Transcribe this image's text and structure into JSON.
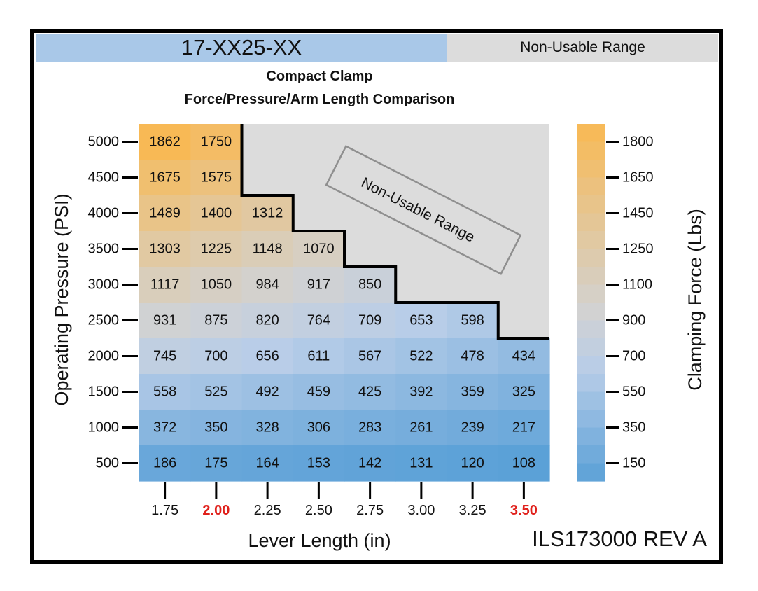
{
  "header": {
    "model": "17-XX25-XX",
    "legend_non_usable": "Non-Usable Range"
  },
  "drawing_number": "ILS173000 REV A",
  "colors": {
    "blue": "#5aa0d7",
    "light_blue": "#b8cde8",
    "gray": "#d2d2d2",
    "orange": "#f9b953",
    "non_usable": "#dcdcdc",
    "highlight_text": "#e0201b"
  },
  "chart_data": {
    "type": "heatmap",
    "title": "Compact Clamp",
    "subtitle": "Force/Pressure/Arm Length Comparison",
    "xlabel": "Lever Length (in)",
    "ylabel": "Operating Pressure (PSI)",
    "colorbar_label": "Clamping Force (Lbs)",
    "x": [
      "1.75",
      "2.00",
      "2.25",
      "2.50",
      "2.75",
      "3.00",
      "3.25",
      "3.50"
    ],
    "x_highlighted": [
      "2.00",
      "3.50"
    ],
    "y": [
      "5000",
      "4500",
      "4000",
      "3500",
      "3000",
      "2500",
      "2000",
      "1500",
      "1000",
      "500"
    ],
    "values": [
      [
        1862,
        1750,
        null,
        null,
        null,
        null,
        null,
        null
      ],
      [
        1675,
        1575,
        null,
        null,
        null,
        null,
        null,
        null
      ],
      [
        1489,
        1400,
        1312,
        null,
        null,
        null,
        null,
        null
      ],
      [
        1303,
        1225,
        1148,
        1070,
        null,
        null,
        null,
        null
      ],
      [
        1117,
        1050,
        984,
        917,
        850,
        null,
        null,
        null
      ],
      [
        931,
        875,
        820,
        764,
        709,
        653,
        598,
        null
      ],
      [
        745,
        700,
        656,
        611,
        567,
        522,
        478,
        434
      ],
      [
        558,
        525,
        492,
        459,
        425,
        392,
        359,
        325
      ],
      [
        372,
        350,
        328,
        306,
        283,
        261,
        239,
        217
      ],
      [
        186,
        175,
        164,
        153,
        142,
        131,
        120,
        108
      ]
    ],
    "non_usable_label": "Non-Usable Range",
    "colorbar_ticks": [
      "1800",
      "1650",
      "1450",
      "1250",
      "1100",
      "900",
      "700",
      "550",
      "350",
      "150"
    ]
  }
}
